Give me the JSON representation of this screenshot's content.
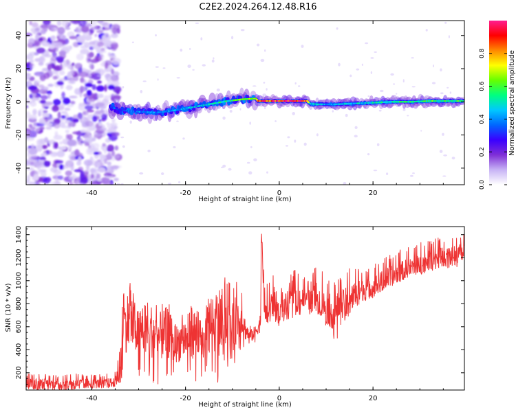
{
  "chart_data": [
    {
      "type": "heatmap",
      "title": "C2E2.2024.264.12.48.R16",
      "xlabel": "Height of straight line (km)",
      "ylabel": "Frequency (Hz)",
      "xlim": [
        -54,
        39.5
      ],
      "ylim": [
        -50,
        49
      ],
      "x_ticks": [
        "-40",
        "-20",
        "0",
        "20"
      ],
      "x_tick_values": [
        -40,
        -20,
        0,
        20
      ],
      "y_ticks": [
        "-40",
        "-20",
        "0",
        "20",
        "40"
      ],
      "y_tick_values": [
        -40,
        -20,
        0,
        20,
        40
      ],
      "colorbar": {
        "label": "Normalized spectral amplitude",
        "range": [
          0,
          1
        ],
        "ticks": [
          "0.0",
          "0.2",
          "0.4",
          "0.6",
          "0.8"
        ],
        "tick_values": [
          0.0,
          0.2,
          0.4,
          0.6,
          0.8
        ],
        "colors": [
          "#ffffff",
          "#c7b3f5",
          "#7f2fd6",
          "#3a00ff",
          "#0066ff",
          "#00c8ff",
          "#00ff80",
          "#66ff00",
          "#ffff00",
          "#ff8800",
          "#ff0000",
          "#ff1e90"
        ]
      },
      "noise_region": {
        "x_from": -54,
        "x_to": -35.5,
        "level": 0.15
      },
      "ridge": {
        "x": [
          -36,
          -34,
          -30,
          -26,
          -22,
          -18,
          -14,
          -11,
          -8,
          -5,
          -4.5,
          0,
          3,
          6,
          6.5,
          8,
          12,
          16,
          20,
          24,
          28,
          32,
          36,
          39.5
        ],
        "frequency": [
          -3,
          -5,
          -6,
          -6.5,
          -5,
          -3,
          -1,
          0.5,
          1.5,
          2,
          0.5,
          0.5,
          0.5,
          0.5,
          -1,
          -1.5,
          -1.5,
          -1,
          -0.5,
          0,
          0,
          0.5,
          0.5,
          0.5
        ],
        "amplitude": [
          0.35,
          0.35,
          0.4,
          0.4,
          0.4,
          0.45,
          0.5,
          0.55,
          0.6,
          0.7,
          0.85,
          0.95,
          0.95,
          0.9,
          0.5,
          0.45,
          0.45,
          0.45,
          0.5,
          0.55,
          0.55,
          0.6,
          0.6,
          0.6
        ]
      }
    },
    {
      "type": "line",
      "title": "",
      "xlabel": "Height of straight line (km)",
      "ylabel": "SNR (10 * v/v)",
      "xlim": [
        -54,
        39.5
      ],
      "ylim": [
        50,
        1470
      ],
      "x_ticks": [
        "-40",
        "-20",
        "0",
        "20"
      ],
      "x_tick_values": [
        -40,
        -20,
        0,
        20
      ],
      "y_ticks": [
        "200",
        "400",
        "600",
        "800",
        "1000",
        "1200",
        "1400"
      ],
      "y_tick_values": [
        200,
        400,
        600,
        800,
        1000,
        1200,
        1400
      ],
      "series": [
        {
          "color": "#ee3333",
          "x": [
            -54,
            -50,
            -46,
            -42,
            -38,
            -35,
            -34,
            -33.5,
            -32,
            -30,
            -28,
            -26,
            -24,
            -22,
            -20,
            -18,
            -16,
            -15,
            -14,
            -13,
            -12,
            -11,
            -10,
            -9,
            -8,
            -7,
            -6,
            -5,
            -4,
            -3.8,
            -3.5,
            -3,
            -2,
            -1,
            0,
            2,
            4,
            6,
            8,
            10,
            12,
            14,
            16,
            18,
            20,
            22,
            24,
            26,
            28,
            30,
            32,
            34,
            36,
            38,
            39.5
          ],
          "y": [
            100,
            110,
            100,
            110,
            105,
            120,
            200,
            600,
            650,
            550,
            600,
            500,
            550,
            450,
            500,
            550,
            400,
            700,
            600,
            550,
            700,
            600,
            550,
            700,
            650,
            560,
            520,
            560,
            650,
            1430,
            1000,
            700,
            760,
            820,
            740,
            800,
            850,
            820,
            860,
            760,
            720,
            800,
            880,
            920,
            940,
            1000,
            1040,
            1080,
            1120,
            1140,
            1180,
            1200,
            1220,
            1230,
            1240
          ],
          "envelope_low": [
            30,
            50,
            40,
            60,
            50,
            80,
            100,
            150,
            100,
            120,
            80,
            100,
            90,
            100,
            120,
            100,
            80,
            300,
            150,
            100,
            300,
            250,
            200,
            350,
            400,
            420,
            430,
            460,
            550,
            900,
            700,
            600,
            620,
            650,
            600,
            650,
            700,
            700,
            720,
            600,
            450,
            650,
            750,
            800,
            850,
            900,
            950,
            1000,
            1050,
            1050,
            1080,
            1100,
            1100,
            1120,
            1140
          ],
          "envelope_high": [
            200,
            190,
            180,
            200,
            190,
            210,
            450,
            850,
            1050,
            750,
            900,
            800,
            850,
            650,
            750,
            850,
            600,
            1050,
            900,
            900,
            1070,
            1050,
            1000,
            1050,
            900,
            700,
            620,
            650,
            800,
            1470,
            1200,
            950,
            1050,
            1100,
            900,
            1050,
            1120,
            1000,
            1150,
            1050,
            1000,
            1100,
            1150,
            1100,
            1150,
            1200,
            1250,
            1300,
            1320,
            1340,
            1350,
            1380,
            1390,
            1400,
            1460
          ]
        }
      ]
    }
  ]
}
